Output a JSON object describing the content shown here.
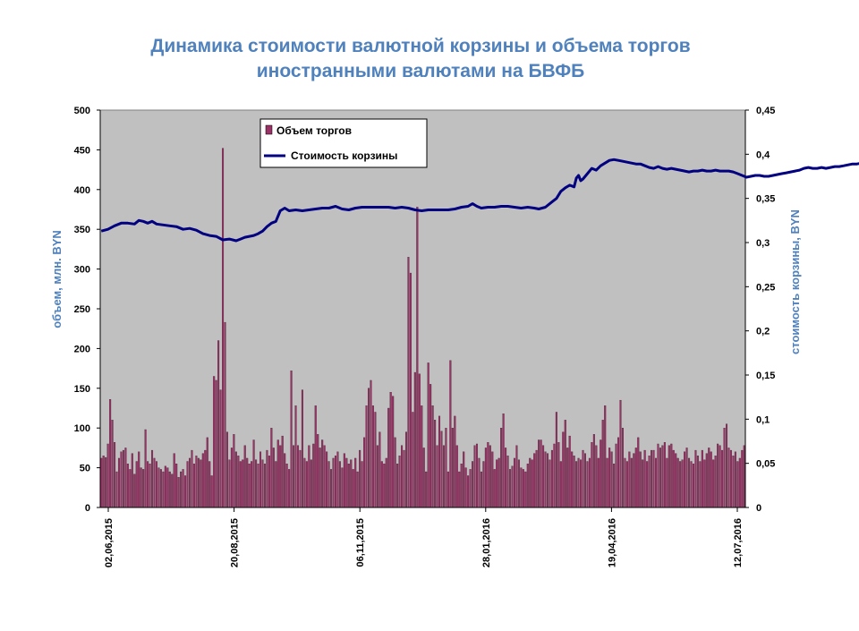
{
  "title_line1": "Динамика стоимости валютной корзины и объема торгов",
  "title_line2": "иностранными валютами на БВФБ",
  "chart_data": {
    "type": "bar+line",
    "title": "Динамика стоимости валютной корзины и объема торгов иностранными валютами на БВФБ",
    "ylabel": "объем, млн. BYN",
    "y2label": "стоимость корзины, BYN",
    "ylim": [
      0,
      500
    ],
    "y2lim": [
      0,
      0.45
    ],
    "yticks": [
      "0",
      "50",
      "100",
      "150",
      "200",
      "250",
      "300",
      "350",
      "400",
      "450",
      "500"
    ],
    "y2ticks": [
      "0",
      "0,05",
      "0,1",
      "0,15",
      "0,2",
      "0,25",
      "0,3",
      "0,35",
      "0,4",
      "0,45"
    ],
    "xticks": [
      "02,06,2015",
      "20,08,2015",
      "06,11,2015",
      "28,01,2016",
      "19,04,2016",
      "12,07,2016"
    ],
    "grid": false,
    "legend_position": "top-left-inside",
    "colors": {
      "bars": "#993366",
      "line": "#000080",
      "plot_bg": "#C0C0C0",
      "title": "#4F81BD"
    },
    "series": [
      {
        "name": "Объем торгов",
        "kind": "bar",
        "values": [
          62,
          65,
          63,
          80,
          136,
          110,
          82,
          45,
          62,
          70,
          72,
          75,
          55,
          48,
          68,
          42,
          58,
          70,
          50,
          48,
          98,
          58,
          55,
          72,
          62,
          58,
          50,
          48,
          45,
          52,
          50,
          45,
          42,
          68,
          55,
          38,
          45,
          48,
          40,
          58,
          62,
          72,
          55,
          65,
          62,
          60,
          68,
          72,
          88,
          58,
          40,
          165,
          160,
          210,
          148,
          452,
          233,
          95,
          60,
          75,
          92,
          70,
          65,
          58,
          60,
          78,
          62,
          55,
          58,
          85,
          60,
          55,
          70,
          60,
          55,
          72,
          65,
          100,
          75,
          58,
          85,
          78,
          90,
          68,
          55,
          48,
          172,
          78,
          128,
          78,
          72,
          148,
          62,
          58,
          78,
          60,
          80,
          128,
          92,
          75,
          85,
          78,
          70,
          58,
          48,
          62,
          65,
          70,
          58,
          50,
          68,
          62,
          55,
          60,
          48,
          62,
          45,
          72,
          58,
          88,
          128,
          150,
          160,
          128,
          120,
          78,
          95,
          58,
          55,
          62,
          125,
          145,
          140,
          88,
          55,
          65,
          78,
          72,
          95,
          315,
          295,
          120,
          170,
          378,
          168,
          128,
          75,
          45,
          182,
          155,
          128,
          110,
          78,
          115,
          96,
          78,
          100,
          45,
          185,
          100,
          115,
          78,
          45,
          55,
          70,
          50,
          40,
          48,
          58,
          78,
          80,
          62,
          45,
          58,
          75,
          82,
          78,
          70,
          48,
          60,
          62,
          100,
          118,
          75,
          65,
          48,
          52,
          62,
          78,
          60,
          50,
          48,
          45,
          55,
          62,
          60,
          68,
          72,
          85,
          85,
          78,
          70,
          68,
          60,
          72,
          80,
          120,
          82,
          58,
          95,
          110,
          75,
          90,
          70,
          65,
          58,
          62,
          60,
          72,
          68,
          58,
          62,
          82,
          92,
          78,
          62,
          85,
          110,
          128,
          62,
          75,
          70,
          55,
          80,
          88,
          135,
          100,
          62,
          58,
          70,
          62,
          68,
          75,
          88,
          70,
          60,
          72,
          58,
          65,
          72,
          72,
          62,
          80,
          75,
          78,
          82,
          62,
          78,
          80,
          72,
          68,
          62,
          58,
          60,
          70,
          75,
          62,
          58,
          55,
          72,
          65,
          58,
          72,
          60,
          68,
          75,
          70,
          60,
          65,
          80,
          78,
          72,
          100,
          105,
          75,
          72,
          65,
          70,
          58,
          62,
          72,
          78
        ]
      },
      {
        "name": "Стоимость корзины",
        "kind": "line",
        "points": [
          [
            0,
            0.313
          ],
          [
            3,
            0.315
          ],
          [
            6,
            0.319
          ],
          [
            9,
            0.322
          ],
          [
            12,
            0.322
          ],
          [
            15,
            0.321
          ],
          [
            17,
            0.325
          ],
          [
            19,
            0.324
          ],
          [
            21,
            0.322
          ],
          [
            23,
            0.324
          ],
          [
            25,
            0.321
          ],
          [
            28,
            0.32
          ],
          [
            31,
            0.319
          ],
          [
            34,
            0.318
          ],
          [
            37,
            0.315
          ],
          [
            40,
            0.316
          ],
          [
            43,
            0.314
          ],
          [
            46,
            0.31
          ],
          [
            49,
            0.308
          ],
          [
            52,
            0.307
          ],
          [
            55,
            0.303
          ],
          [
            58,
            0.304
          ],
          [
            61,
            0.302
          ],
          [
            63,
            0.304
          ],
          [
            65,
            0.306
          ],
          [
            67,
            0.307
          ],
          [
            69,
            0.308
          ],
          [
            71,
            0.31
          ],
          [
            73,
            0.313
          ],
          [
            75,
            0.318
          ],
          [
            77,
            0.322
          ],
          [
            79,
            0.324
          ],
          [
            81,
            0.336
          ],
          [
            83,
            0.339
          ],
          [
            85,
            0.336
          ],
          [
            88,
            0.337
          ],
          [
            91,
            0.336
          ],
          [
            94,
            0.337
          ],
          [
            97,
            0.338
          ],
          [
            100,
            0.339
          ],
          [
            103,
            0.339
          ],
          [
            106,
            0.341
          ],
          [
            109,
            0.338
          ],
          [
            112,
            0.337
          ],
          [
            115,
            0.339
          ],
          [
            118,
            0.34
          ],
          [
            121,
            0.34
          ],
          [
            124,
            0.34
          ],
          [
            127,
            0.34
          ],
          [
            130,
            0.34
          ],
          [
            133,
            0.339
          ],
          [
            136,
            0.34
          ],
          [
            139,
            0.339
          ],
          [
            142,
            0.337
          ],
          [
            145,
            0.336
          ],
          [
            148,
            0.337
          ],
          [
            151,
            0.337
          ],
          [
            154,
            0.337
          ],
          [
            157,
            0.337
          ],
          [
            160,
            0.338
          ],
          [
            163,
            0.34
          ],
          [
            166,
            0.341
          ],
          [
            168,
            0.344
          ],
          [
            170,
            0.341
          ],
          [
            172,
            0.339
          ],
          [
            175,
            0.34
          ],
          [
            178,
            0.34
          ],
          [
            181,
            0.341
          ],
          [
            184,
            0.341
          ],
          [
            187,
            0.34
          ],
          [
            190,
            0.339
          ],
          [
            193,
            0.34
          ],
          [
            196,
            0.339
          ],
          [
            198,
            0.338
          ],
          [
            201,
            0.34
          ],
          [
            204,
            0.346
          ],
          [
            206,
            0.35
          ],
          [
            208,
            0.358
          ],
          [
            210,
            0.362
          ],
          [
            212,
            0.365
          ],
          [
            214,
            0.363
          ],
          [
            215,
            0.373
          ],
          [
            216,
            0.376
          ],
          [
            217,
            0.37
          ],
          [
            218,
            0.372
          ],
          [
            220,
            0.378
          ],
          [
            222,
            0.384
          ],
          [
            224,
            0.382
          ],
          [
            226,
            0.387
          ],
          [
            228,
            0.39
          ],
          [
            230,
            0.393
          ],
          [
            232,
            0.394
          ],
          [
            234,
            0.393
          ],
          [
            236,
            0.392
          ],
          [
            238,
            0.391
          ],
          [
            240,
            0.39
          ],
          [
            242,
            0.389
          ],
          [
            244,
            0.389
          ],
          [
            246,
            0.387
          ],
          [
            248,
            0.385
          ],
          [
            250,
            0.384
          ],
          [
            252,
            0.386
          ],
          [
            254,
            0.384
          ],
          [
            256,
            0.383
          ],
          [
            258,
            0.384
          ],
          [
            260,
            0.383
          ],
          [
            262,
            0.382
          ],
          [
            264,
            0.381
          ],
          [
            266,
            0.38
          ],
          [
            268,
            0.381
          ],
          [
            270,
            0.381
          ],
          [
            272,
            0.382
          ],
          [
            274,
            0.381
          ],
          [
            276,
            0.381
          ],
          [
            278,
            0.382
          ],
          [
            280,
            0.381
          ],
          [
            282,
            0.381
          ],
          [
            284,
            0.381
          ],
          [
            286,
            0.38
          ],
          [
            288,
            0.378
          ],
          [
            290,
            0.376
          ],
          [
            292,
            0.374
          ],
          [
            294,
            0.375
          ],
          [
            296,
            0.376
          ],
          [
            298,
            0.376
          ],
          [
            300,
            0.375
          ],
          [
            302,
            0.375
          ],
          [
            304,
            0.376
          ],
          [
            306,
            0.377
          ],
          [
            308,
            0.378
          ],
          [
            310,
            0.379
          ],
          [
            312,
            0.38
          ],
          [
            314,
            0.381
          ],
          [
            316,
            0.382
          ],
          [
            318,
            0.384
          ],
          [
            320,
            0.385
          ],
          [
            322,
            0.384
          ],
          [
            324,
            0.384
          ],
          [
            326,
            0.385
          ],
          [
            328,
            0.384
          ],
          [
            330,
            0.385
          ],
          [
            332,
            0.386
          ],
          [
            334,
            0.386
          ],
          [
            336,
            0.387
          ],
          [
            338,
            0.388
          ],
          [
            340,
            0.389
          ],
          [
            342,
            0.389
          ],
          [
            344,
            0.39
          ],
          [
            346,
            0.389
          ],
          [
            348,
            0.388
          ],
          [
            350,
            0.386
          ]
        ]
      }
    ]
  }
}
